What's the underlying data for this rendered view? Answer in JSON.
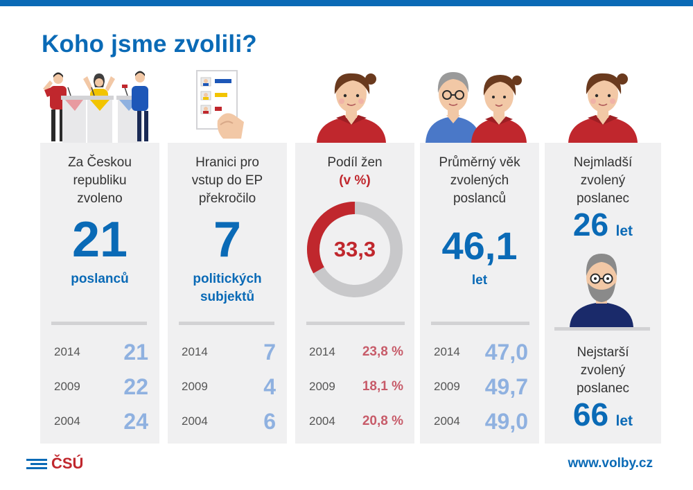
{
  "title": "Koho jsme zvolili?",
  "panels": {
    "deputies": {
      "heading": [
        "Za Českou",
        "republiku",
        "zvoleno"
      ],
      "value": "21",
      "unit": "poslanců",
      "history": [
        {
          "year": "2014",
          "value": "21"
        },
        {
          "year": "2009",
          "value": "22"
        },
        {
          "year": "2004",
          "value": "24"
        }
      ]
    },
    "parties": {
      "heading": [
        "Hranici pro",
        "vstup do EP",
        "překročilo"
      ],
      "value": "7",
      "unit": [
        "politických",
        "subjektů"
      ],
      "history": [
        {
          "year": "2014",
          "value": "7"
        },
        {
          "year": "2009",
          "value": "4"
        },
        {
          "year": "2004",
          "value": "6"
        }
      ]
    },
    "women": {
      "heading": "Podíl žen",
      "heading_unit": "(v %)",
      "value": "33,3",
      "share_percent": 33.3,
      "history": [
        {
          "year": "2014",
          "value": "23,8 %"
        },
        {
          "year": "2009",
          "value": "18,1 %"
        },
        {
          "year": "2004",
          "value": "20,8 %"
        }
      ]
    },
    "age": {
      "heading": [
        "Průměrný věk",
        "zvolených",
        "poslanců"
      ],
      "value": "46,1",
      "unit": "let",
      "history": [
        {
          "year": "2014",
          "value": "47,0"
        },
        {
          "year": "2009",
          "value": "49,7"
        },
        {
          "year": "2004",
          "value": "49,0"
        }
      ]
    },
    "extremes": {
      "youngest_heading": [
        "Nejmladší",
        "zvolený",
        "poslanec"
      ],
      "youngest_value": "26",
      "youngest_unit": "let",
      "oldest_heading": [
        "Nejstarší",
        "zvolený",
        "poslanec"
      ],
      "oldest_value": "66",
      "oldest_unit": "let"
    }
  },
  "footer": {
    "logo_text": "ČSÚ",
    "url": "www.volby.cz"
  },
  "colors": {
    "brand_blue": "#0a6ab6",
    "history_blue": "#8fb1e0",
    "accent_red": "#c0272d",
    "history_red": "#c75b69",
    "panel_bg": "#f0f0f1"
  }
}
